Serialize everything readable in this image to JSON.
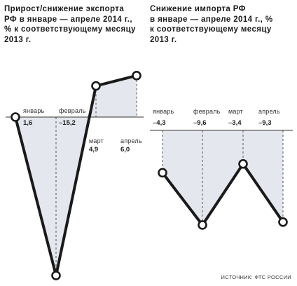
{
  "charts": {
    "export": {
      "title": "Прирост/снижение экспорта\nРФ в январе — апреле 2014 г.,\n% к соответствующему месяцу\n2013 г."
    },
    "import": {
      "title": "Снижение импорта РФ\nв январе — апреле 2014 г., %\nк соответствующему месяцу\n2013 г."
    }
  },
  "source": "ИСТОЧНИК: ФТС РОССИИ",
  "colors": {
    "line": "#1a1a1a",
    "fill": "#e4e8ee",
    "baseline": "#333333"
  },
  "chart_data": [
    {
      "type": "area",
      "title": "Прирост/снижение экспорта РФ в январе — апреле 2014 г., % к соответствующему месяцу 2013 г.",
      "categories": [
        "январь",
        "февраль",
        "март",
        "апрель"
      ],
      "values": [
        "1,6",
        "–15,2",
        "4,9",
        "6,0"
      ],
      "y": [
        1.6,
        -15.2,
        4.9,
        6.0
      ],
      "ylim": [
        -15.2,
        6.0
      ],
      "grid": false
    },
    {
      "type": "area",
      "title": "Снижение импорта РФ в январе — апреле 2014 г., % к соответствующему месяцу 2013 г.",
      "categories": [
        "январь",
        "февраль",
        "март",
        "апрель"
      ],
      "values": [
        "–4,3",
        "–9,6",
        "–3,4",
        "–9,3"
      ],
      "y": [
        -4.3,
        -9.6,
        -3.4,
        -9.3
      ],
      "ylim": [
        -9.6,
        0
      ],
      "grid": false
    }
  ]
}
